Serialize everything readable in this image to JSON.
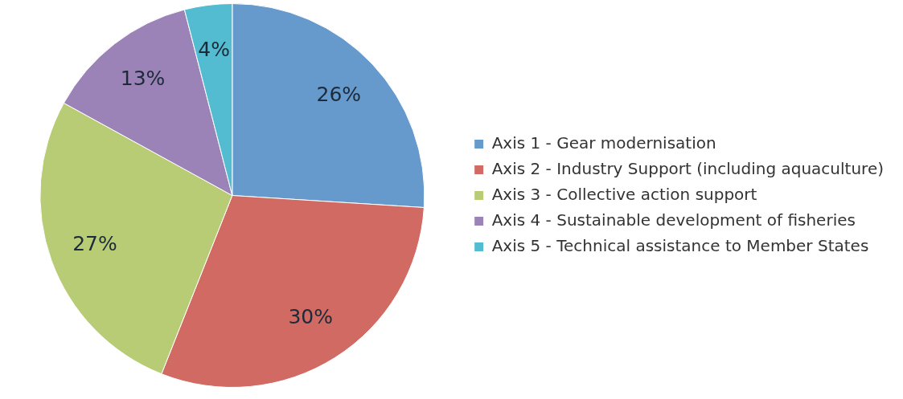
{
  "chart_data": {
    "type": "pie",
    "categories": [
      "Axis 1 - Gear modernisation",
      "Axis 2 - Industry Support (including aquaculture)",
      "Axis 3 - Collective action support",
      "Axis 4 - Sustainable development of fisheries",
      "Axis 5 - Technical assistance to Member States"
    ],
    "values": [
      26,
      30,
      27,
      13,
      4
    ],
    "colors": [
      "#6699cc",
      "#d06a62",
      "#b7cc74",
      "#9b82b7",
      "#54bcd0"
    ],
    "value_labels": [
      "26%",
      "30%",
      "27%",
      "13%",
      "4%"
    ],
    "legend": "right"
  }
}
